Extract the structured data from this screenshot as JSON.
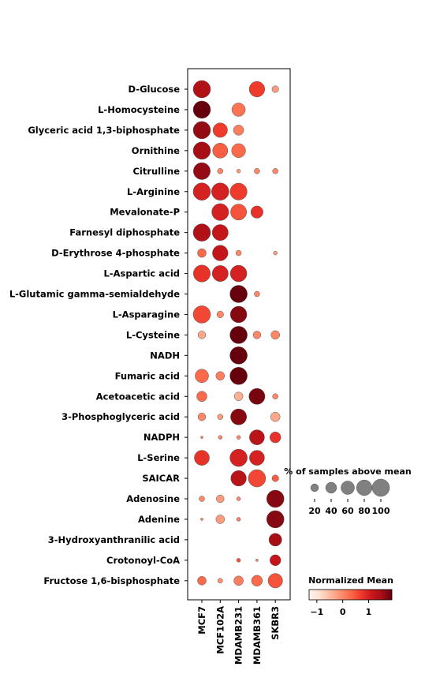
{
  "chart_data": {
    "type": "dotplot",
    "columns": [
      "MCF7",
      "MCF102A",
      "MDAMB231",
      "MDAMB361",
      "SKBR3"
    ],
    "rows": [
      "D-Glucose",
      "L-Homocysteine",
      "Glyceric acid 1,3-biphosphate",
      "Ornithine",
      "Citrulline",
      "L-Arginine",
      "Mevalonate-P",
      "Farnesyl diphosphate",
      "D-Erythrose 4-phosphate",
      "L-Aspartic acid",
      "L-Glutamic gamma-semialdehyde",
      "L-Asparagine",
      "L-Cysteine",
      "NADH",
      "Fumaric acid",
      "Acetoacetic acid",
      "3-Phosphoglyceric acid",
      "NADPH",
      "L-Serine",
      "SAICAR",
      "Adenosine",
      "Adenine",
      "3-Hydroxyanthranilic acid",
      "Crotonoyl-CoA",
      "Fructose 1,6-bisphosphate"
    ],
    "percent_above_mean": [
      [
        100,
        0,
        0,
        80,
        15
      ],
      [
        100,
        0,
        60,
        0,
        0
      ],
      [
        100,
        70,
        35,
        0,
        0
      ],
      [
        100,
        75,
        65,
        0,
        0
      ],
      [
        95,
        10,
        5,
        10,
        10
      ],
      [
        100,
        100,
        95,
        0,
        0
      ],
      [
        0,
        95,
        85,
        50,
        0
      ],
      [
        100,
        85,
        0,
        0,
        0
      ],
      [
        25,
        80,
        10,
        0,
        5
      ],
      [
        95,
        85,
        90,
        0,
        0
      ],
      [
        0,
        0,
        100,
        10,
        0
      ],
      [
        100,
        15,
        90,
        0,
        0
      ],
      [
        20,
        0,
        100,
        20,
        25
      ],
      [
        0,
        0,
        100,
        0,
        0
      ],
      [
        60,
        25,
        100,
        0,
        0
      ],
      [
        35,
        0,
        25,
        85,
        10
      ],
      [
        20,
        10,
        85,
        0,
        30
      ],
      [
        2,
        5,
        5,
        75,
        40
      ],
      [
        75,
        0,
        100,
        75,
        0
      ],
      [
        0,
        0,
        80,
        100,
        15
      ],
      [
        10,
        20,
        5,
        0,
        100
      ],
      [
        2,
        25,
        5,
        0,
        100
      ],
      [
        0,
        0,
        0,
        0,
        55
      ],
      [
        0,
        0,
        5,
        2,
        40
      ],
      [
        25,
        8,
        30,
        40,
        70
      ]
    ],
    "normalized_mean": [
      [
        1.4,
        null,
        null,
        0.7,
        -0.2
      ],
      [
        1.9,
        null,
        0.2,
        null,
        null
      ],
      [
        1.6,
        0.7,
        0.1,
        null,
        null
      ],
      [
        1.5,
        0.4,
        0.3,
        null,
        null
      ],
      [
        1.6,
        0.0,
        -0.2,
        0.0,
        0.0
      ],
      [
        1.0,
        1.0,
        0.7,
        null,
        null
      ],
      [
        null,
        1.0,
        0.5,
        0.8,
        null
      ],
      [
        1.4,
        1.2,
        null,
        null,
        null
      ],
      [
        0.3,
        1.2,
        0.0,
        null,
        -0.2
      ],
      [
        0.8,
        1.0,
        1.0,
        null,
        null
      ],
      [
        null,
        null,
        2.0,
        0.0,
        null
      ],
      [
        0.6,
        0.0,
        1.7,
        null,
        null
      ],
      [
        -0.3,
        null,
        1.9,
        0.0,
        0.0
      ],
      [
        null,
        null,
        2.1,
        null,
        null
      ],
      [
        0.3,
        0.1,
        1.9,
        null,
        null
      ],
      [
        0.3,
        null,
        -0.4,
        1.8,
        0.0
      ],
      [
        0.0,
        -0.2,
        1.7,
        null,
        -0.3
      ],
      [
        0.0,
        0.0,
        0.0,
        1.3,
        0.8
      ],
      [
        0.8,
        null,
        1.0,
        1.0,
        null
      ],
      [
        null,
        null,
        1.3,
        0.6,
        0.4
      ],
      [
        0.0,
        -0.2,
        0.0,
        null,
        1.7
      ],
      [
        0.0,
        -0.2,
        0.1,
        null,
        1.7
      ],
      [
        null,
        null,
        null,
        null,
        1.5
      ],
      [
        null,
        null,
        0.5,
        0.0,
        1.2
      ],
      [
        0.3,
        -0.1,
        0.1,
        0.3,
        0.5
      ]
    ],
    "size_legend": {
      "title": "% of samples above mean",
      "values": [
        20,
        40,
        60,
        80,
        100
      ],
      "labels": [
        "20",
        "40",
        "60",
        "80",
        "100"
      ]
    },
    "color_legend": {
      "title": "Normalized Mean",
      "min": -1.3,
      "max": 1.9,
      "ticks": [
        -1,
        0,
        1
      ],
      "tick_labels": [
        "−1",
        "0",
        "1"
      ],
      "colormap": "Reds"
    },
    "grid": false,
    "legend_position": "right"
  }
}
